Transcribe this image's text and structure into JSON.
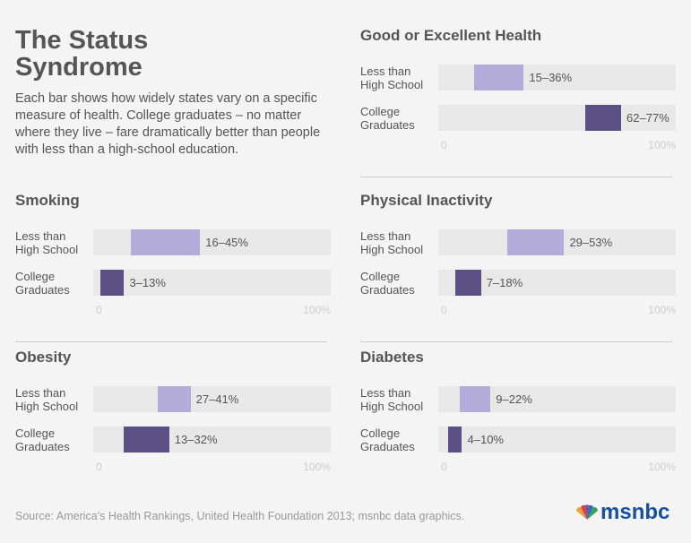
{
  "title": "The Status Syndrome",
  "description": "Each bar shows how widely states vary on a specific measure of health. College graduates – no matter where they live – fare dramatically better than people with less than a high-school education.",
  "source": "Source: America's Health Rankings, United Health Foundation 2013; msnbc data graphics.",
  "logo": "msnbc",
  "chart_data": [
    {
      "type": "range_bar",
      "title": "Good or Excellent Health",
      "categories": [
        "Less than High School",
        "College Graduates"
      ],
      "values": [
        [
          15,
          36
        ],
        [
          62,
          77
        ]
      ],
      "value_labels": [
        "15–36%",
        "62–77%"
      ],
      "colors": [
        "#b3acd8",
        "#5b4f85"
      ],
      "xlim": [
        0,
        100
      ],
      "xticks": [
        0,
        {
          "value": 100,
          "label": "100%"
        }
      ]
    },
    {
      "type": "range_bar",
      "title": "Smoking",
      "categories": [
        "Less than High School",
        "College Graduates"
      ],
      "values": [
        [
          16,
          45
        ],
        [
          3,
          13
        ]
      ],
      "value_labels": [
        "16–45%",
        "3–13%"
      ],
      "colors": [
        "#b3acd8",
        "#5b4f85"
      ],
      "xlim": [
        0,
        100
      ],
      "xticks": [
        0,
        {
          "value": 100,
          "label": "100%"
        }
      ]
    },
    {
      "type": "range_bar",
      "title": "Physical Inactivity",
      "categories": [
        "Less than High School",
        "College Graduates"
      ],
      "values": [
        [
          29,
          53
        ],
        [
          7,
          18
        ]
      ],
      "value_labels": [
        "29–53%",
        "7–18%"
      ],
      "colors": [
        "#b3acd8",
        "#5b4f85"
      ],
      "xlim": [
        0,
        100
      ],
      "xticks": [
        0,
        {
          "value": 100,
          "label": "100%"
        }
      ]
    },
    {
      "type": "range_bar",
      "title": "Obesity",
      "categories": [
        "Less than High School",
        "College Graduates"
      ],
      "values": [
        [
          27,
          41
        ],
        [
          13,
          32
        ]
      ],
      "value_labels": [
        "27–41%",
        "13–32%"
      ],
      "colors": [
        "#b3acd8",
        "#5b4f85"
      ],
      "xlim": [
        0,
        100
      ],
      "xticks": [
        0,
        {
          "value": 100,
          "label": "100%"
        }
      ]
    },
    {
      "type": "range_bar",
      "title": "Diabetes",
      "categories": [
        "Less than High School",
        "College Graduates"
      ],
      "values": [
        [
          9,
          22
        ],
        [
          4,
          10
        ]
      ],
      "value_labels": [
        "9–22%",
        "4–10%"
      ],
      "colors": [
        "#b3acd8",
        "#5b4f85"
      ],
      "xlim": [
        0,
        100
      ],
      "xticks": [
        0,
        {
          "value": 100,
          "label": "100%"
        }
      ]
    }
  ]
}
